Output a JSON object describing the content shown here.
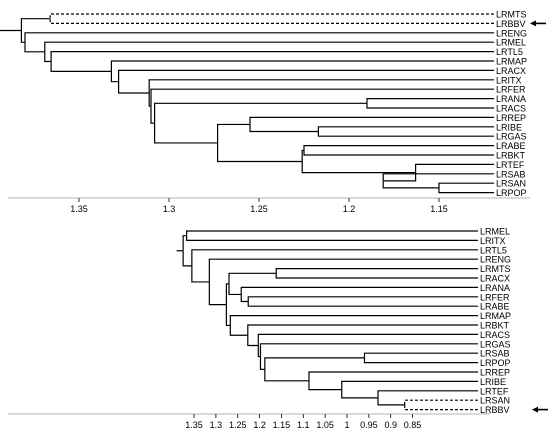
{
  "top_dendrogram": {
    "leaves": [
      "LRMTS",
      "LRBBV",
      "LRENG",
      "LRMEL",
      "LRTL5",
      "LRMAP",
      "LRACX",
      "LRITX",
      "LRFER",
      "LRANA",
      "LRACS",
      "LRREP",
      "LRIBE",
      "LRGAS",
      "LRABE",
      "LRBKT",
      "LRTEF",
      "LRSAB",
      "LRSAN",
      "LRPOP"
    ],
    "highlighted_leaf": "LRBBV",
    "dashed_leaves": [
      "LRMTS",
      "LRBBV"
    ],
    "axis": {
      "ticks": [
        1.35,
        1.3,
        1.25,
        1.2,
        1.15
      ],
      "tick_labels": [
        "1.35",
        "1.3",
        "1.25",
        "1.2",
        "1.15"
      ]
    }
  },
  "bottom_dendrogram": {
    "leaves": [
      "LRMEL",
      "LRITX",
      "LRTL5",
      "LRENG",
      "LRMTS",
      "LRACX",
      "LRANA",
      "LRFER",
      "LRABE",
      "LRMAP",
      "LRBKT",
      "LRACS",
      "LRGAS",
      "LRSAB",
      "LRPOP",
      "LRREP",
      "LRIBE",
      "LRTEF",
      "LRSAN",
      "LRBBV"
    ],
    "highlighted_leaf": "LRBBV",
    "dashed_leaves": [
      "LRSAN",
      "LRBBV"
    ],
    "axis": {
      "ticks": [
        1.35,
        1.3,
        1.25,
        1.2,
        1.15,
        1.1,
        1.05,
        1,
        0.95,
        0.9,
        0.85
      ],
      "tick_labels": [
        "1.35",
        "1.3",
        "1.25",
        "1.2",
        "1.15",
        "1.1",
        "1.05",
        "1",
        "0.95",
        "0.9",
        "0.85"
      ]
    }
  }
}
